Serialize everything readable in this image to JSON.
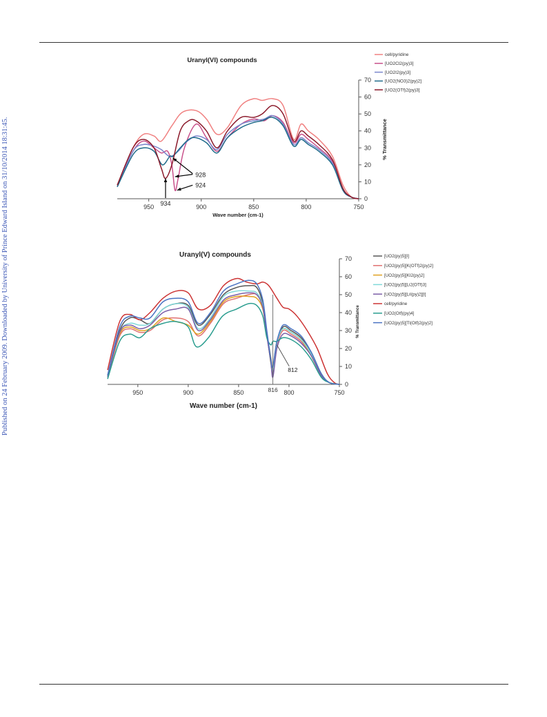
{
  "side_note": "Published on 24 February 2009. Downloaded by University of Prince Edward Island on 31/10/2014 18:31:45.",
  "chart_data": [
    {
      "type": "line",
      "title": "Uranyl(VI) compounds",
      "xlabel": "Wave number (cm-1)",
      "ylabel": "% Transmittance",
      "xlim": [
        980,
        750
      ],
      "ylim": [
        0,
        70
      ],
      "x_ticks": [
        "950",
        "900",
        "850",
        "800",
        "750"
      ],
      "y_ticks": [
        "0",
        "10",
        "20",
        "30",
        "40",
        "50",
        "60",
        "70"
      ],
      "grid": false,
      "legend_position": "top-right",
      "annotations": [
        {
          "text": "928",
          "x": 920,
          "y": 14
        },
        {
          "text": "924",
          "x": 920,
          "y": 8
        },
        {
          "text": "934",
          "x": 934,
          "y": -3
        }
      ],
      "series": [
        {
          "name": "cell/pyridine",
          "color": "#f08080",
          "x": [
            980,
            965,
            955,
            945,
            938,
            928,
            918,
            905,
            895,
            885,
            875,
            862,
            850,
            842,
            832,
            822,
            812,
            805,
            798,
            788,
            775,
            765,
            757,
            750
          ],
          "y": [
            8,
            30,
            38,
            37,
            34,
            43,
            51,
            52,
            47,
            38,
            42,
            55,
            59,
            58,
            59,
            55,
            35,
            44,
            40,
            35,
            25,
            8,
            1,
            0
          ]
        },
        {
          "name": "[UO2Cl2(py)3]",
          "color": "#c8508a",
          "x": [
            980,
            965,
            955,
            945,
            938,
            932,
            928,
            925,
            922,
            916,
            905,
            895,
            885,
            875,
            862,
            850,
            840,
            832,
            822,
            812,
            805,
            798,
            788,
            775,
            765,
            757,
            750
          ],
          "y": [
            8,
            28,
            34,
            30,
            27,
            28,
            20,
            5,
            12,
            30,
            44,
            36,
            28,
            36,
            44,
            47,
            46,
            49,
            45,
            33,
            38,
            35,
            30,
            22,
            6,
            1,
            0
          ]
        },
        {
          "name": "[UO2I2(py)3]",
          "color": "#7a86cc",
          "x": [
            980,
            965,
            955,
            945,
            938,
            930,
            922,
            915,
            905,
            895,
            885,
            875,
            862,
            850,
            840,
            832,
            822,
            812,
            805,
            798,
            788,
            775,
            765,
            757,
            750
          ],
          "y": [
            7,
            28,
            32,
            31,
            29,
            25,
            28,
            33,
            37,
            35,
            29,
            38,
            44,
            46,
            47,
            49,
            44,
            32,
            36,
            33,
            29,
            21,
            5,
            1,
            0
          ]
        },
        {
          "name": "[UO2(NO3)2(py)2]",
          "color": "#1f6b8a",
          "x": [
            980,
            965,
            955,
            945,
            937,
            930,
            927,
            920,
            912,
            905,
            895,
            885,
            875,
            862,
            850,
            842,
            832,
            822,
            812,
            805,
            798,
            788,
            775,
            765,
            757,
            750
          ],
          "y": [
            7,
            26,
            30,
            28,
            20,
            25,
            25,
            30,
            35,
            36,
            33,
            27,
            36,
            42,
            45,
            46,
            48,
            43,
            31,
            35,
            32,
            28,
            20,
            5,
            1,
            0
          ]
        },
        {
          "name": "[UO2(OTf)2(py)3]",
          "color": "#8b1a2b",
          "x": [
            980,
            965,
            955,
            945,
            938,
            934,
            928,
            920,
            912,
            905,
            895,
            885,
            875,
            862,
            850,
            842,
            832,
            822,
            812,
            805,
            798,
            788,
            775,
            765,
            757,
            750
          ],
          "y": [
            8,
            30,
            35,
            30,
            18,
            12,
            20,
            40,
            46,
            46,
            40,
            30,
            40,
            48,
            48,
            50,
            55,
            50,
            34,
            40,
            37,
            32,
            23,
            6,
            1,
            0
          ]
        }
      ]
    },
    {
      "type": "line",
      "title": "Uranyl(V) compounds",
      "xlabel": "Wave number (cm-1)",
      "ylabel": "% Transmittance",
      "xlim": [
        980,
        750
      ],
      "ylim": [
        0,
        70
      ],
      "x_ticks": [
        "950",
        "900",
        "850",
        "800",
        "750"
      ],
      "y_ticks": [
        "0",
        "10",
        "20",
        "30",
        "40",
        "50",
        "60",
        "70"
      ],
      "extra_x_label": {
        "text": "816",
        "x": 816
      },
      "grid": false,
      "legend_position": "right",
      "annotations": [
        {
          "text": "812",
          "x": 808,
          "y": 7
        }
      ],
      "series": [
        {
          "name": "[UO2(py)5][I]",
          "color": "#555555",
          "x": [
            980,
            968,
            958,
            948,
            938,
            925,
            912,
            900,
            890,
            878,
            865,
            852,
            840,
            832,
            826,
            822,
            818,
            816,
            812,
            806,
            798,
            788,
            778,
            768,
            760,
            750
          ],
          "y": [
            5,
            30,
            37,
            36,
            34,
            42,
            45,
            44,
            33,
            39,
            50,
            54,
            55,
            54,
            45,
            28,
            12,
            6,
            22,
            32,
            30,
            26,
            18,
            6,
            1,
            0
          ]
        },
        {
          "name": "[UO2(py)5][K(OTf)2(py)2]",
          "color": "#e07070",
          "x": [
            980,
            968,
            958,
            948,
            938,
            925,
            912,
            900,
            890,
            878,
            865,
            852,
            840,
            832,
            826,
            822,
            818,
            816,
            812,
            806,
            798,
            788,
            778,
            768,
            760,
            750
          ],
          "y": [
            4,
            27,
            31,
            29,
            30,
            36,
            37,
            35,
            27,
            34,
            45,
            48,
            50,
            50,
            43,
            27,
            14,
            8,
            22,
            30,
            28,
            24,
            16,
            5,
            1,
            0
          ]
        },
        {
          "name": "[UO2(py)5][KI2(py)2]",
          "color": "#e0a020",
          "x": [
            980,
            968,
            958,
            948,
            938,
            925,
            912,
            900,
            890,
            878,
            865,
            852,
            840,
            832,
            826,
            822,
            818,
            816,
            812,
            806,
            798,
            788,
            778,
            768,
            760,
            750
          ],
          "y": [
            4,
            28,
            32,
            30,
            31,
            37,
            35,
            33,
            28,
            35,
            46,
            49,
            49,
            48,
            42,
            28,
            15,
            9,
            24,
            31,
            29,
            25,
            16,
            5,
            1,
            0
          ]
        },
        {
          "name": "[UO2(py)5][Li2(OTf)3]",
          "color": "#7fd8d8",
          "x": [
            980,
            968,
            958,
            948,
            938,
            925,
            912,
            900,
            890,
            878,
            865,
            852,
            840,
            832,
            826,
            822,
            818,
            816,
            812,
            806,
            798,
            788,
            778,
            768,
            760,
            750
          ],
          "y": [
            4,
            29,
            34,
            33,
            34,
            42,
            45,
            43,
            31,
            37,
            49,
            52,
            52,
            51,
            44,
            28,
            14,
            8,
            23,
            31,
            29,
            25,
            17,
            5,
            1,
            0
          ]
        },
        {
          "name": "[UO2(py)5][LiI(py)2][I]",
          "color": "#7b5ea7",
          "x": [
            980,
            968,
            958,
            948,
            938,
            925,
            912,
            900,
            890,
            878,
            865,
            852,
            840,
            832,
            826,
            822,
            818,
            816,
            812,
            806,
            798,
            788,
            778,
            768,
            760,
            750
          ],
          "y": [
            4,
            29,
            33,
            31,
            33,
            40,
            42,
            42,
            30,
            36,
            47,
            50,
            51,
            50,
            43,
            27,
            13,
            4,
            20,
            28,
            27,
            23,
            16,
            5,
            1,
            0
          ]
        },
        {
          "name": "cell/pyridine",
          "color": "#cc3333",
          "x": [
            980,
            968,
            958,
            948,
            938,
            925,
            912,
            900,
            890,
            878,
            865,
            852,
            842,
            832,
            826,
            820,
            812,
            806,
            800,
            792,
            782,
            772,
            762,
            755,
            750
          ],
          "y": [
            8,
            35,
            39,
            36,
            40,
            48,
            52,
            51,
            42,
            44,
            55,
            59,
            57,
            56,
            57,
            55,
            48,
            43,
            42,
            38,
            30,
            20,
            6,
            1,
            0
          ]
        },
        {
          "name": "[UO2(Otf)(py)4]",
          "color": "#2a9d8f",
          "x": [
            980,
            968,
            958,
            948,
            938,
            925,
            912,
            900,
            892,
            880,
            866,
            852,
            840,
            832,
            826,
            822,
            818,
            816,
            812,
            806,
            798,
            788,
            778,
            768,
            760,
            750
          ],
          "y": [
            3,
            24,
            28,
            26,
            31,
            34,
            35,
            32,
            21,
            26,
            38,
            42,
            45,
            44,
            38,
            26,
            22,
            24,
            24,
            26,
            25,
            21,
            14,
            4,
            1,
            0
          ]
        },
        {
          "name": "[UO2(py)5][Tl(Otf)2(py)2]",
          "color": "#4a73c2",
          "x": [
            980,
            968,
            958,
            948,
            938,
            925,
            912,
            900,
            890,
            878,
            865,
            852,
            840,
            832,
            826,
            822,
            818,
            816,
            812,
            806,
            798,
            788,
            778,
            768,
            760,
            750
          ],
          "y": [
            5,
            32,
            38,
            37,
            37,
            46,
            48,
            46,
            34,
            40,
            52,
            56,
            58,
            56,
            47,
            30,
            14,
            10,
            24,
            33,
            31,
            27,
            18,
            6,
            1,
            0
          ]
        }
      ]
    }
  ]
}
